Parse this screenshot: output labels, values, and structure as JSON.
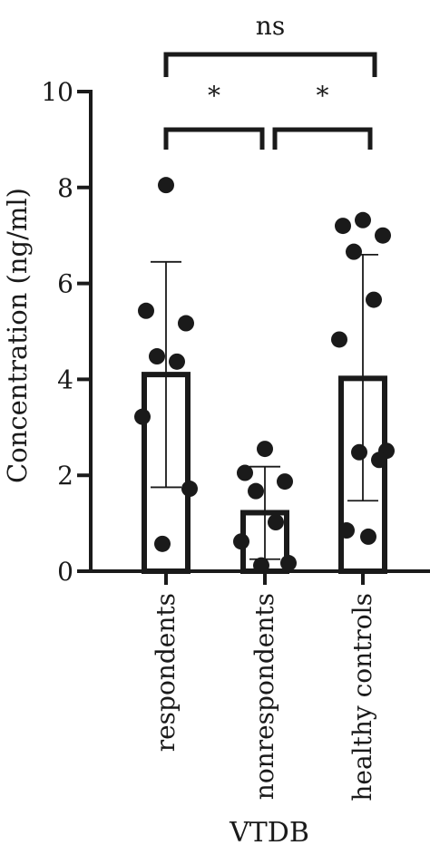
{
  "chart_data": {
    "type": "bar",
    "xlabel": "VTDB",
    "ylabel": "Concentration (ng/ml)",
    "ylim": [
      0,
      10
    ],
    "yticks": [
      0,
      2,
      4,
      6,
      8,
      10
    ],
    "categories": [
      "respondents",
      "nonrespondents",
      "healthy controls"
    ],
    "bars": [
      {
        "mean": 4.1,
        "error_low": 1.75,
        "error_high": 6.45,
        "points": [
          8.05,
          5.43,
          5.17,
          4.48,
          4.37,
          3.22,
          1.72,
          0.57
        ]
      },
      {
        "mean": 1.22,
        "error_low": 0.25,
        "error_high": 2.18,
        "points": [
          2.55,
          1.87,
          1.67,
          2.05,
          1.02,
          0.62,
          0.12,
          0.17
        ]
      },
      {
        "mean": 4.02,
        "error_low": 1.47,
        "error_high": 6.6,
        "points": [
          7.32,
          7.2,
          7.0,
          6.66,
          5.66,
          4.83,
          2.51,
          2.48,
          2.32,
          0.85,
          0.72
        ]
      }
    ],
    "significance": [
      {
        "from": 0,
        "to": 1,
        "label": "*"
      },
      {
        "from": 1,
        "to": 2,
        "label": "*"
      },
      {
        "from": 0,
        "to": 2,
        "label": "ns"
      }
    ]
  }
}
